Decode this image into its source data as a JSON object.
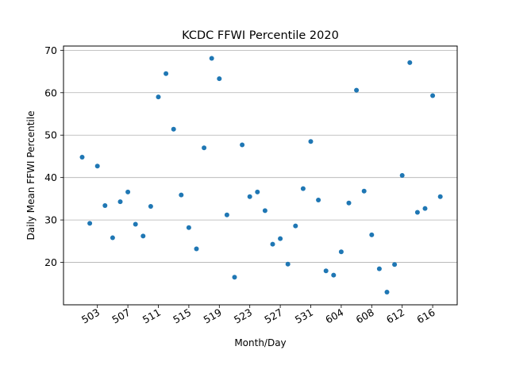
{
  "chart_data": {
    "type": "scatter",
    "title": "KCDC FFWI Percentile 2020",
    "xlabel": "Month/Day",
    "ylabel": "Daily Mean FFWI Percentile",
    "ylim": [
      10,
      71
    ],
    "yticks": [
      20,
      30,
      40,
      50,
      60,
      70
    ],
    "xticks": [
      "503",
      "507",
      "511",
      "515",
      "519",
      "523",
      "527",
      "531",
      "604",
      "608",
      "612",
      "616"
    ],
    "grid": "horizontal",
    "point_color": "#1f77b4",
    "series": [
      {
        "x": [
          "501",
          "502",
          "503",
          "504",
          "505",
          "506",
          "507",
          "508",
          "509",
          "510",
          "511",
          "512",
          "513",
          "514",
          "515",
          "516",
          "517",
          "518",
          "519",
          "520",
          "521",
          "522",
          "523",
          "524",
          "525",
          "526",
          "527",
          "528",
          "529",
          "530",
          "531",
          "601",
          "602",
          "603",
          "604",
          "605",
          "606",
          "607",
          "608",
          "609",
          "610",
          "611",
          "612",
          "613",
          "614",
          "615",
          "616",
          "617"
        ],
        "values": [
          44.8,
          29.2,
          42.7,
          33.4,
          25.8,
          34.3,
          36.6,
          29.0,
          26.2,
          33.2,
          59.0,
          64.5,
          51.4,
          35.9,
          28.2,
          23.2,
          47.0,
          68.1,
          63.3,
          31.2,
          16.5,
          47.7,
          35.5,
          36.6,
          32.2,
          24.3,
          25.6,
          19.6,
          28.6,
          37.4,
          48.5,
          34.7,
          18.0,
          17.0,
          22.5,
          34.0,
          60.6,
          36.8,
          26.5,
          18.5,
          13.0,
          19.5,
          40.5,
          67.1,
          31.8,
          32.7,
          59.3,
          35.5
        ]
      }
    ]
  }
}
